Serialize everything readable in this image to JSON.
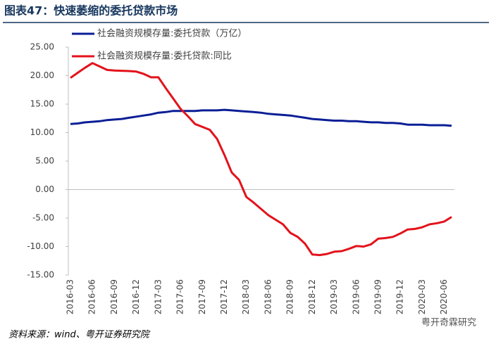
{
  "chart_data": {
    "type": "line",
    "title": "图表47：快速萎缩的委托贷款市场",
    "source": "资料来源：wind、粤开证券研究院",
    "watermark": "粤开奇霖研究",
    "categories": [
      "2016-03",
      null,
      null,
      "2016-06",
      null,
      null,
      "2016-09",
      null,
      null,
      "2016-12",
      null,
      null,
      "2017-03",
      null,
      null,
      "2017-06",
      null,
      null,
      "2017-09",
      null,
      null,
      "2017-12",
      null,
      null,
      "2018-03",
      null,
      null,
      "2018-06",
      null,
      null,
      "2018-09",
      null,
      null,
      "2018-12",
      null,
      null,
      "2019-03",
      null,
      null,
      "2019-06",
      null,
      null,
      "2019-09",
      null,
      null,
      "2019-12",
      null,
      null,
      "2020-03",
      null,
      null,
      "2020-06",
      null
    ],
    "series": [
      {
        "name": "社会融资规模存量:委托贷款（万亿）",
        "color": "#0a1e96",
        "values": [
          11.5,
          11.6,
          11.8,
          11.9,
          12.0,
          12.2,
          12.3,
          12.4,
          12.6,
          12.8,
          13.0,
          13.2,
          13.5,
          13.6,
          13.8,
          13.8,
          13.8,
          13.8,
          13.9,
          13.9,
          13.9,
          14.0,
          13.9,
          13.8,
          13.7,
          13.6,
          13.5,
          13.3,
          13.2,
          13.1,
          13.0,
          12.8,
          12.6,
          12.4,
          12.3,
          12.2,
          12.1,
          12.1,
          12.0,
          12.0,
          11.9,
          11.8,
          11.8,
          11.7,
          11.7,
          11.6,
          11.4,
          11.4,
          11.4,
          11.3,
          11.3,
          11.3,
          11.2
        ]
      },
      {
        "name": "社会融资规模存量:委托贷款:同比",
        "color": "#e3121b",
        "values": [
          19.6,
          20.5,
          21.4,
          22.2,
          21.6,
          21.0,
          20.9,
          20.85,
          20.8,
          20.7,
          20.3,
          19.7,
          19.7,
          17.8,
          16.0,
          14.2,
          12.9,
          11.5,
          11.0,
          10.5,
          8.9,
          6.1,
          3.0,
          1.7,
          -1.3,
          -2.3,
          -3.4,
          -4.5,
          -5.3,
          -6.1,
          -7.6,
          -8.3,
          -9.5,
          -11.4,
          -11.5,
          -11.3,
          -10.9,
          -10.8,
          -10.4,
          -9.9,
          -10.0,
          -9.6,
          -8.6,
          -8.5,
          -8.3,
          -7.7,
          -7.0,
          -6.9,
          -6.6,
          -6.1,
          -5.9,
          -5.6,
          -4.8
        ]
      }
    ],
    "ylim": [
      -15,
      25
    ],
    "yticks": [
      {
        "value": 25,
        "label": "25.00"
      },
      {
        "value": 20,
        "label": "20.00"
      },
      {
        "value": 15,
        "label": "15.00"
      },
      {
        "value": 10,
        "label": "10.00"
      },
      {
        "value": 5,
        "label": "5.00"
      },
      {
        "value": 0,
        "label": "0.00"
      },
      {
        "value": -5,
        "label": "-5.00"
      },
      {
        "value": -10,
        "label": "-10.00"
      },
      {
        "value": -15,
        "label": "-15.00"
      }
    ],
    "grid": false,
    "legend": "upper left"
  }
}
